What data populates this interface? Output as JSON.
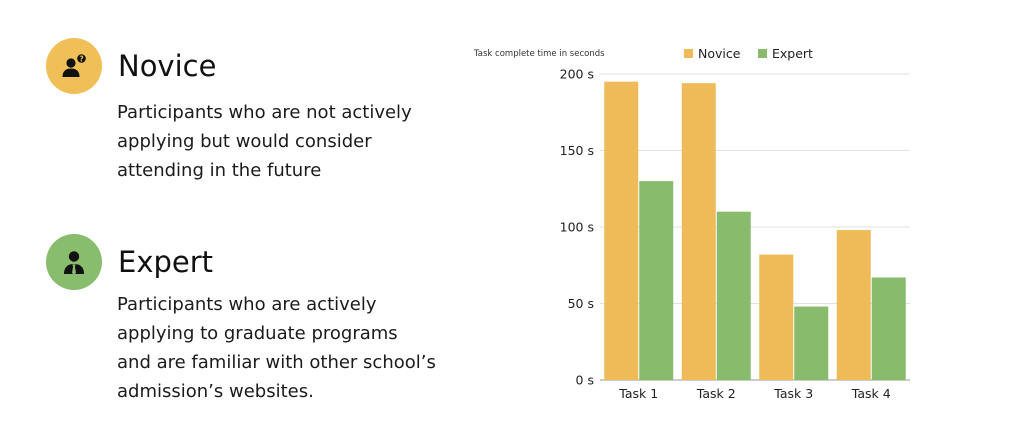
{
  "personas": {
    "novice": {
      "title": "Novice",
      "description": "Participants who are not actively applying but would consider attending in the future",
      "color": "#f0bf58",
      "icon": "user-question-icon"
    },
    "expert": {
      "title": "Expert",
      "description": "Participants who are actively applying to graduate programs and are familiar with other school’s admission’s websites.",
      "color": "#88bd6d",
      "icon": "user-tie-icon"
    }
  },
  "chart_data": {
    "type": "bar",
    "title": "",
    "ylabel": "Task complete time in seconds",
    "xlabel": "",
    "categories": [
      "Task 1",
      "Task 2",
      "Task 3",
      "Task 4"
    ],
    "series": [
      {
        "name": "Novice",
        "values": [
          195,
          194,
          82,
          98
        ],
        "color": "#eebb58"
      },
      {
        "name": "Expert",
        "values": [
          130,
          110,
          48,
          67
        ],
        "color": "#88bb6c"
      }
    ],
    "ylim": [
      0,
      200
    ],
    "yticks": [
      0,
      50,
      100,
      150,
      200
    ],
    "ytick_labels": [
      "0 s",
      "50 s",
      "100 s",
      "150 s",
      "200 s"
    ],
    "grid": true,
    "legend_position": "top"
  }
}
